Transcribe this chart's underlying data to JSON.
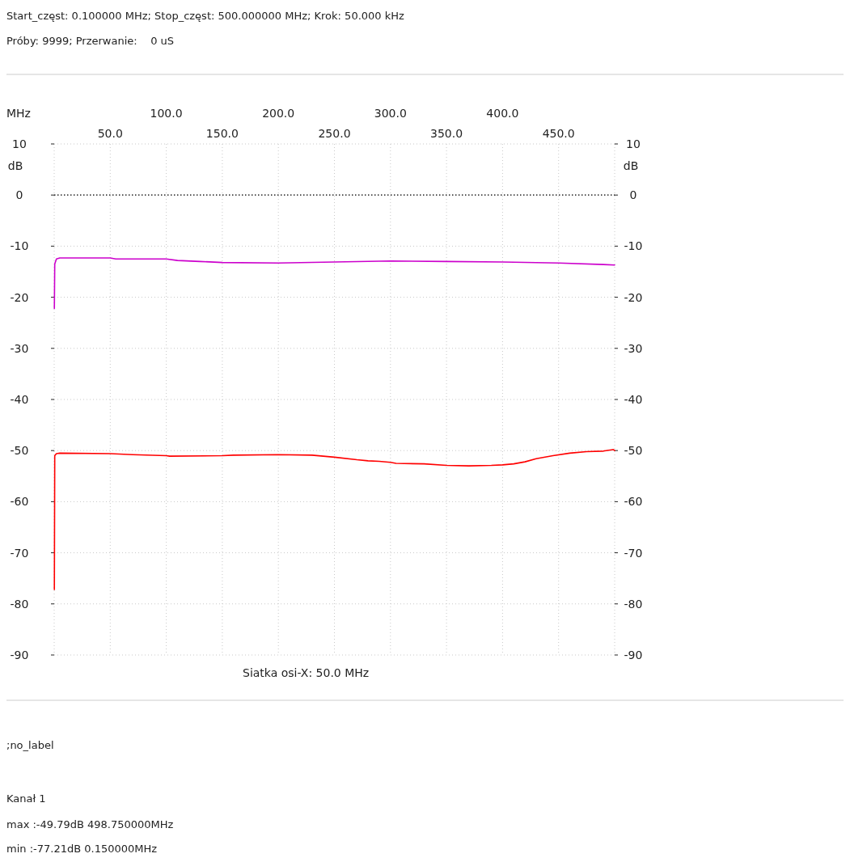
{
  "chart_data": {
    "type": "line",
    "title": "Start_częst: 0.100000 MHz; Stop_częst: 500.000000 MHz; Krok: 50.000 kHz",
    "subtitle": "Próby: 9999; Przerwanie:    0 uS",
    "xlabel": "MHz",
    "ylabel": "dB",
    "y2label": "dB",
    "xlim": [
      0,
      500
    ],
    "xticks": [
      {
        "value": 50,
        "label": "50.0"
      },
      {
        "value": 150,
        "label": "150.0"
      },
      {
        "value": 250,
        "label": "250.0"
      },
      {
        "value": 350,
        "label": "350.0"
      },
      {
        "value": 450,
        "label": "450.0"
      }
    ],
    "x2lim": [
      0,
      500
    ],
    "x2ticks": [
      {
        "value": 100,
        "label": "100.0"
      },
      {
        "value": 200,
        "label": "200.0"
      },
      {
        "value": 300,
        "label": "300.0"
      },
      {
        "value": 400,
        "label": "400.0"
      }
    ],
    "ylim": [
      -90,
      10
    ],
    "yticks": [
      -90,
      -80,
      -70,
      -60,
      -50,
      -40,
      -30,
      -20,
      -10,
      0,
      10
    ],
    "y2lim": [
      -90,
      10
    ],
    "y2ticks": [
      -90,
      -80,
      -70,
      -60,
      -50,
      -40,
      -30,
      -20,
      -10,
      0,
      10
    ],
    "grid": true,
    "line_style": "solid",
    "marker": "none",
    "ref_lines": [
      {
        "axis": "y",
        "value": 0,
        "color": "#000000",
        "line_style": "dotted"
      }
    ],
    "series": [
      {
        "color": "#cc00cc",
        "x": [
          0.15,
          0.5,
          2,
          5,
          50,
          55,
          100,
          110,
          130,
          150,
          200,
          250,
          300,
          350,
          400,
          450,
          490,
          500
        ],
        "values": [
          -22.2,
          -13.5,
          -12.5,
          -12.3,
          -12.3,
          -12.5,
          -12.5,
          -12.8,
          -13.0,
          -13.2,
          -13.3,
          -13.1,
          -12.9,
          -13.0,
          -13.1,
          -13.3,
          -13.6,
          -13.7
        ]
      },
      {
        "color": "#ff0000",
        "x": [
          0.15,
          0.5,
          2,
          5,
          50,
          70,
          100,
          103,
          150,
          160,
          200,
          230,
          240,
          250,
          270,
          280,
          290,
          300,
          305,
          330,
          350,
          370,
          390,
          400,
          410,
          420,
          430,
          445,
          460,
          475,
          490,
          498.75,
          500
        ],
        "values": [
          -77.2,
          -51.0,
          -50.6,
          -50.5,
          -50.6,
          -50.8,
          -51.0,
          -51.1,
          -51.0,
          -50.9,
          -50.8,
          -50.9,
          -51.1,
          -51.3,
          -51.8,
          -52.0,
          -52.1,
          -52.3,
          -52.5,
          -52.6,
          -52.9,
          -53.0,
          -52.9,
          -52.8,
          -52.6,
          -52.2,
          -51.6,
          -51.0,
          -50.5,
          -50.2,
          -50.1,
          -49.8,
          -50.0
        ]
      }
    ],
    "annotations": [
      "Siatka osi-X: 50.0 MHz",
      ";no_label",
      "Kanał 1",
      "max :-49.79dB 498.750000MHz",
      "min :-77.21dB 0.150000MHz"
    ]
  }
}
